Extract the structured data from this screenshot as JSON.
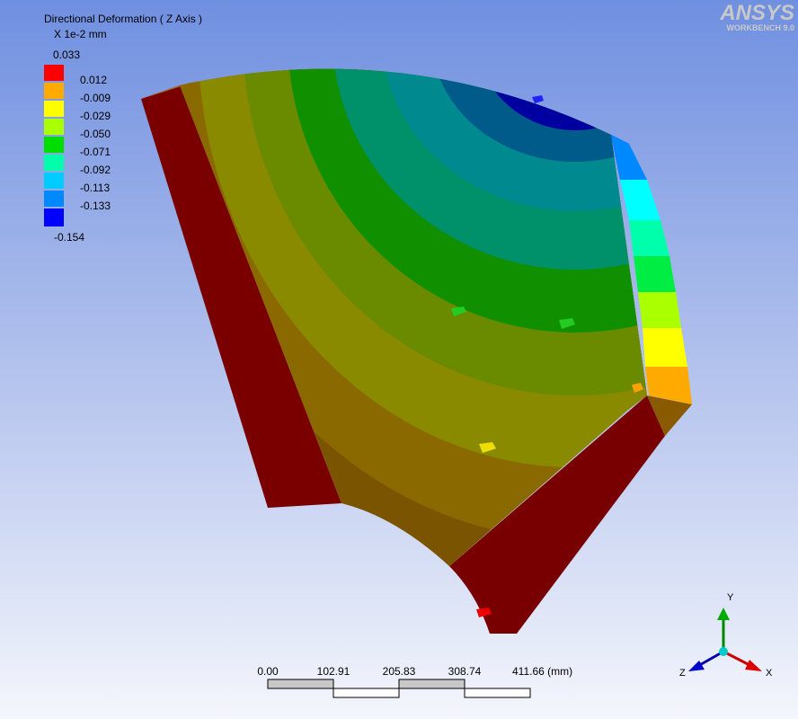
{
  "header": {
    "title": "Directional Deformation ( Z Axis )",
    "units": "X 1e-2 mm"
  },
  "legend": {
    "max": "0.033",
    "min": "-0.154",
    "items": [
      {
        "label": "0.012",
        "color": "#ff0000"
      },
      {
        "label": "-0.009",
        "color": "#ffaa00"
      },
      {
        "label": "-0.029",
        "color": "#ffff00"
      },
      {
        "label": "-0.050",
        "color": "#aaff00"
      },
      {
        "label": "-0.071",
        "color": "#00dd00"
      },
      {
        "label": "-0.092",
        "color": "#00ffaa"
      },
      {
        "label": "-0.113",
        "color": "#00ccff"
      },
      {
        "label": "-0.133",
        "color": "#0088ff"
      },
      {
        "label": "",
        "color": "#0000ff"
      }
    ]
  },
  "logo": {
    "name": "ANSYS",
    "version": "WORKBENCH 9.0"
  },
  "scale_bar": {
    "ticks": [
      "0.00",
      "102.91",
      "205.83",
      "308.74",
      "411.66 (mm)"
    ]
  },
  "triad": {
    "x": "X",
    "y": "Y",
    "z": "Z"
  }
}
